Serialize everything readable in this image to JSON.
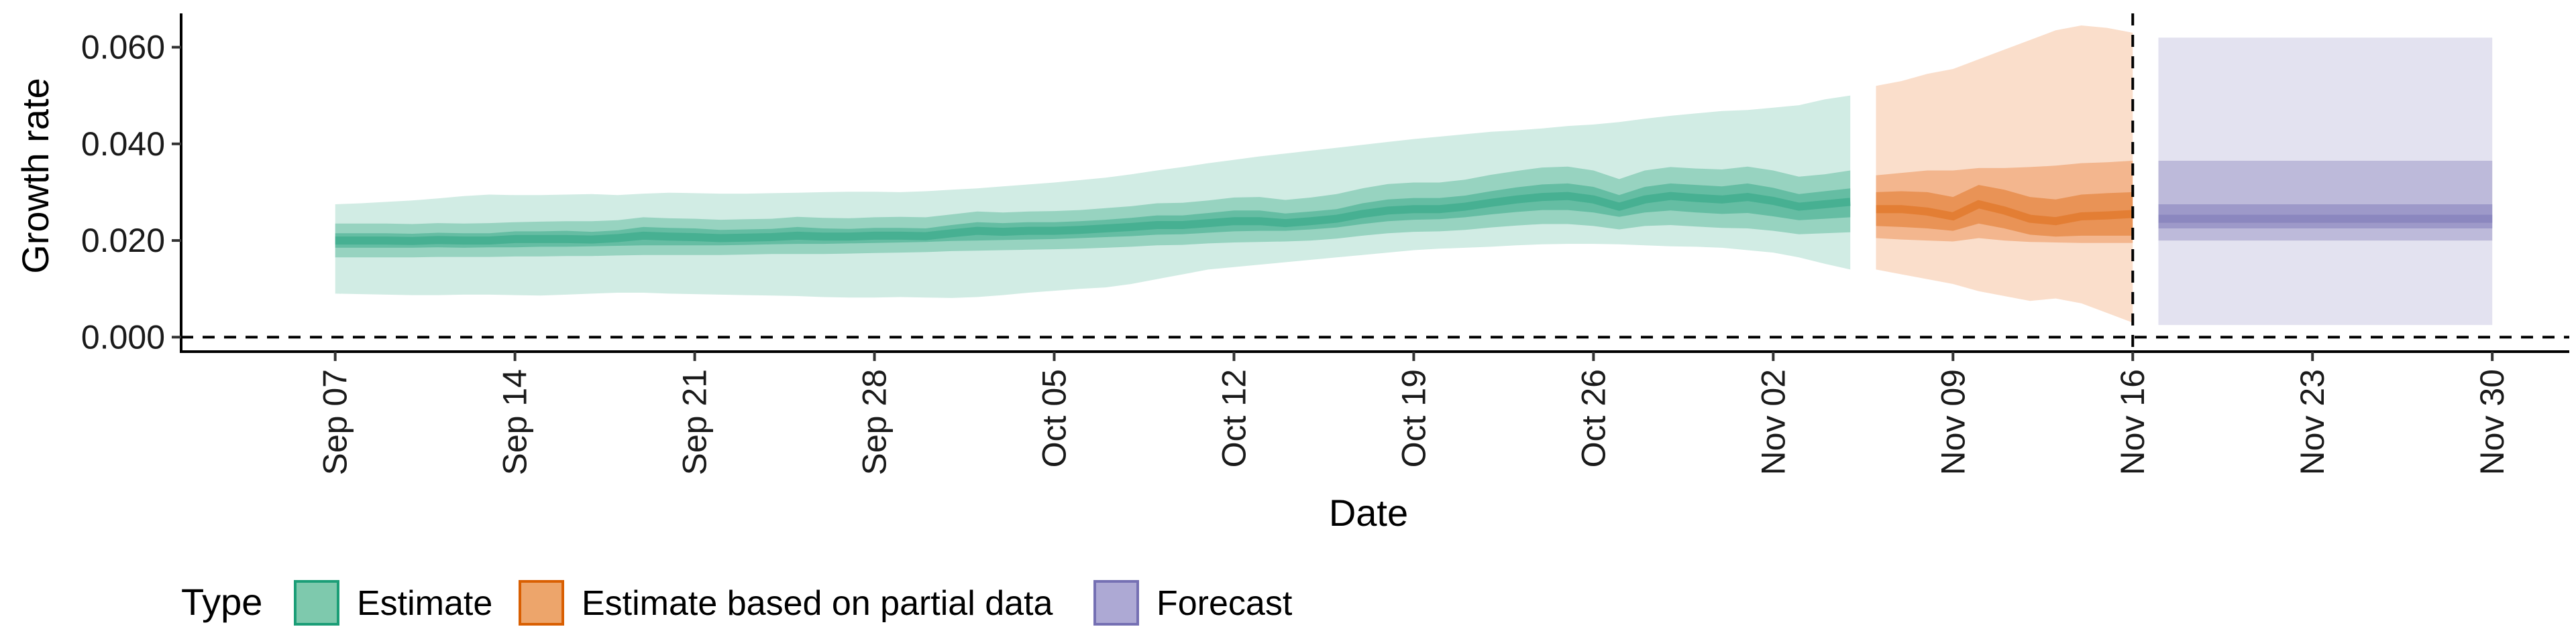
{
  "chart_data": {
    "type": "area",
    "xlabel": "Date",
    "ylabel": "Growth rate",
    "x_ticks": [
      "Sep 07",
      "Sep 14",
      "Sep 21",
      "Sep 28",
      "Oct 05",
      "Oct 12",
      "Oct 19",
      "Oct 26",
      "Nov 02",
      "Nov 09",
      "Nov 16",
      "Nov 23",
      "Nov 30"
    ],
    "y_ticks": [
      "0.000",
      "0.020",
      "0.040",
      "0.060"
    ],
    "xlim": [
      "2020-09-01",
      "2020-12-03"
    ],
    "ylim": [
      -0.003,
      0.067
    ],
    "grid": false,
    "legend": {
      "title": "Type",
      "position": "bottom-left",
      "entries": [
        {
          "label": "Estimate",
          "fill": "#7ec9ad",
          "stroke": "#1b9e77"
        },
        {
          "label": "Estimate based on partial data",
          "fill": "#eda56b",
          "stroke": "#d95f02"
        },
        {
          "label": "Forecast",
          "fill": "#ada9d4",
          "stroke": "#7570b3"
        }
      ]
    },
    "reference_lines": [
      {
        "axis": "y",
        "value": 0,
        "style": "dashed"
      },
      {
        "axis": "x",
        "value": "2020-11-16",
        "style": "dashed"
      }
    ],
    "series": [
      {
        "name": "Estimate",
        "color": "#1b9e77",
        "start": "2020-09-07",
        "end": "2020-11-05",
        "median": [
          0.02,
          0.02,
          0.02,
          0.0199,
          0.0201,
          0.02,
          0.02,
          0.0203,
          0.0203,
          0.0203,
          0.0202,
          0.0205,
          0.021,
          0.0208,
          0.0207,
          0.0205,
          0.0206,
          0.0207,
          0.021,
          0.0208,
          0.0208,
          0.021,
          0.021,
          0.0209,
          0.0215,
          0.022,
          0.0218,
          0.022,
          0.022,
          0.0222,
          0.0225,
          0.0228,
          0.0232,
          0.0232,
          0.0236,
          0.024,
          0.024,
          0.0236,
          0.024,
          0.0245,
          0.0255,
          0.0262,
          0.0265,
          0.0265,
          0.027,
          0.0278,
          0.0285,
          0.029,
          0.0292,
          0.0285,
          0.027,
          0.0285,
          0.0292,
          0.0288,
          0.0285,
          0.029,
          0.0282,
          0.027,
          0.0275,
          0.028
        ],
        "lower50": [
          0.0185,
          0.0185,
          0.0185,
          0.0185,
          0.0186,
          0.0185,
          0.0186,
          0.0186,
          0.0187,
          0.0187,
          0.0188,
          0.0189,
          0.019,
          0.019,
          0.019,
          0.019,
          0.0191,
          0.0192,
          0.0193,
          0.0193,
          0.0194,
          0.0195,
          0.0196,
          0.0197,
          0.0199,
          0.02,
          0.0201,
          0.0202,
          0.0203,
          0.0205,
          0.0207,
          0.0209,
          0.0212,
          0.0213,
          0.0216,
          0.0219,
          0.022,
          0.022,
          0.0223,
          0.0227,
          0.0234,
          0.024,
          0.0243,
          0.0244,
          0.0248,
          0.0254,
          0.0259,
          0.0263,
          0.0263,
          0.0258,
          0.0249,
          0.0258,
          0.0262,
          0.0258,
          0.0255,
          0.0257,
          0.025,
          0.0242,
          0.0245,
          0.0248
        ],
        "upper50": [
          0.0215,
          0.0215,
          0.0215,
          0.0214,
          0.0216,
          0.0215,
          0.0215,
          0.0219,
          0.0219,
          0.022,
          0.0218,
          0.0221,
          0.0228,
          0.0226,
          0.0225,
          0.0222,
          0.0223,
          0.0224,
          0.0228,
          0.0225,
          0.0224,
          0.0226,
          0.0226,
          0.0225,
          0.0232,
          0.0238,
          0.0236,
          0.0238,
          0.0238,
          0.024,
          0.0243,
          0.0247,
          0.0252,
          0.0252,
          0.0257,
          0.0262,
          0.0262,
          0.0256,
          0.026,
          0.0265,
          0.0277,
          0.0285,
          0.0288,
          0.0288,
          0.0293,
          0.0302,
          0.031,
          0.0316,
          0.0318,
          0.0311,
          0.0294,
          0.0311,
          0.0318,
          0.0315,
          0.0312,
          0.0318,
          0.0309,
          0.0296,
          0.0302,
          0.0308
        ],
        "lower90": [
          0.0165,
          0.0165,
          0.0165,
          0.0165,
          0.0166,
          0.0166,
          0.0166,
          0.0167,
          0.0167,
          0.0168,
          0.0168,
          0.0169,
          0.017,
          0.017,
          0.017,
          0.017,
          0.0171,
          0.0172,
          0.0172,
          0.0172,
          0.0173,
          0.0174,
          0.0175,
          0.0176,
          0.0178,
          0.0179,
          0.018,
          0.0181,
          0.0182,
          0.0183,
          0.0185,
          0.0187,
          0.019,
          0.0191,
          0.0194,
          0.0196,
          0.0197,
          0.0198,
          0.02,
          0.0204,
          0.021,
          0.0215,
          0.0218,
          0.0219,
          0.0222,
          0.0227,
          0.0231,
          0.0234,
          0.0234,
          0.023,
          0.0223,
          0.023,
          0.0232,
          0.0229,
          0.0226,
          0.0225,
          0.022,
          0.0213,
          0.0215,
          0.0217
        ],
        "upper90": [
          0.0235,
          0.0235,
          0.0235,
          0.0234,
          0.0236,
          0.0235,
          0.0236,
          0.0238,
          0.0239,
          0.024,
          0.024,
          0.0242,
          0.0248,
          0.0246,
          0.0245,
          0.0243,
          0.0244,
          0.0245,
          0.0249,
          0.0247,
          0.0246,
          0.0248,
          0.0249,
          0.0248,
          0.0254,
          0.026,
          0.0258,
          0.026,
          0.0261,
          0.0263,
          0.0267,
          0.0271,
          0.0277,
          0.0278,
          0.0283,
          0.0289,
          0.029,
          0.0284,
          0.0289,
          0.0296,
          0.0308,
          0.0317,
          0.032,
          0.032,
          0.0326,
          0.0336,
          0.0344,
          0.0351,
          0.0353,
          0.0345,
          0.0327,
          0.0345,
          0.0352,
          0.0349,
          0.0347,
          0.0353,
          0.0345,
          0.0332,
          0.0337,
          0.0345
        ],
        "lower_outer": [
          0.009,
          0.0089,
          0.0088,
          0.0087,
          0.0087,
          0.0088,
          0.0088,
          0.0087,
          0.0086,
          0.0088,
          0.009,
          0.0092,
          0.0092,
          0.009,
          0.0089,
          0.0088,
          0.0087,
          0.0086,
          0.0085,
          0.0083,
          0.0082,
          0.0082,
          0.0083,
          0.0082,
          0.0081,
          0.0083,
          0.0087,
          0.0092,
          0.0096,
          0.01,
          0.0103,
          0.011,
          0.012,
          0.013,
          0.014,
          0.0145,
          0.015,
          0.0155,
          0.016,
          0.0165,
          0.017,
          0.0175,
          0.018,
          0.0183,
          0.0185,
          0.0187,
          0.019,
          0.0192,
          0.0193,
          0.0193,
          0.0192,
          0.019,
          0.0188,
          0.0187,
          0.0185,
          0.018,
          0.0175,
          0.0165,
          0.0152,
          0.014
        ],
        "upper_outer": [
          0.0275,
          0.0277,
          0.028,
          0.0283,
          0.0287,
          0.0292,
          0.0295,
          0.0294,
          0.0294,
          0.0295,
          0.0296,
          0.0294,
          0.0297,
          0.0299,
          0.0298,
          0.0297,
          0.0297,
          0.0298,
          0.0299,
          0.03,
          0.0301,
          0.0301,
          0.03,
          0.0302,
          0.0305,
          0.0308,
          0.0312,
          0.0316,
          0.032,
          0.0325,
          0.033,
          0.0337,
          0.0345,
          0.0352,
          0.036,
          0.0367,
          0.0374,
          0.038,
          0.0386,
          0.0392,
          0.0398,
          0.0404,
          0.041,
          0.0415,
          0.042,
          0.0425,
          0.0428,
          0.0432,
          0.0437,
          0.044,
          0.0445,
          0.0452,
          0.0458,
          0.0463,
          0.0468,
          0.047,
          0.0475,
          0.048,
          0.0492,
          0.05
        ]
      },
      {
        "name": "Estimate based on partial data",
        "color": "#d95f02",
        "start": "2020-11-06",
        "end": "2020-11-16",
        "median": [
          0.0265,
          0.0265,
          0.026,
          0.025,
          0.0275,
          0.0262,
          0.0245,
          0.024,
          0.025,
          0.0252,
          0.0255
        ],
        "lower50": [
          0.023,
          0.0228,
          0.0225,
          0.022,
          0.0235,
          0.0225,
          0.0212,
          0.0208,
          0.021,
          0.021,
          0.021
        ],
        "upper50": [
          0.03,
          0.0302,
          0.03,
          0.029,
          0.0315,
          0.0305,
          0.029,
          0.0285,
          0.0295,
          0.0298,
          0.03
        ],
        "lower90": [
          0.0205,
          0.0202,
          0.02,
          0.0198,
          0.0205,
          0.02,
          0.0197,
          0.0196,
          0.0195,
          0.0195,
          0.0195
        ],
        "upper90": [
          0.0335,
          0.034,
          0.0345,
          0.0345,
          0.035,
          0.035,
          0.0352,
          0.0355,
          0.036,
          0.0362,
          0.0365
        ],
        "lower_outer": [
          0.014,
          0.013,
          0.012,
          0.011,
          0.0095,
          0.0085,
          0.0075,
          0.008,
          0.007,
          0.005,
          0.003
        ],
        "upper_outer": [
          0.052,
          0.053,
          0.0545,
          0.0555,
          0.0575,
          0.0595,
          0.0615,
          0.0635,
          0.0645,
          0.064,
          0.063
        ]
      },
      {
        "name": "Forecast",
        "color": "#7570b3",
        "start": "2020-11-17",
        "end": "2020-11-30",
        "median": 0.0245,
        "lower50": 0.0225,
        "upper50": 0.0275,
        "lower90": 0.02,
        "upper90": 0.0365,
        "lower_outer": 0.0025,
        "upper_outer": 0.062
      }
    ]
  }
}
